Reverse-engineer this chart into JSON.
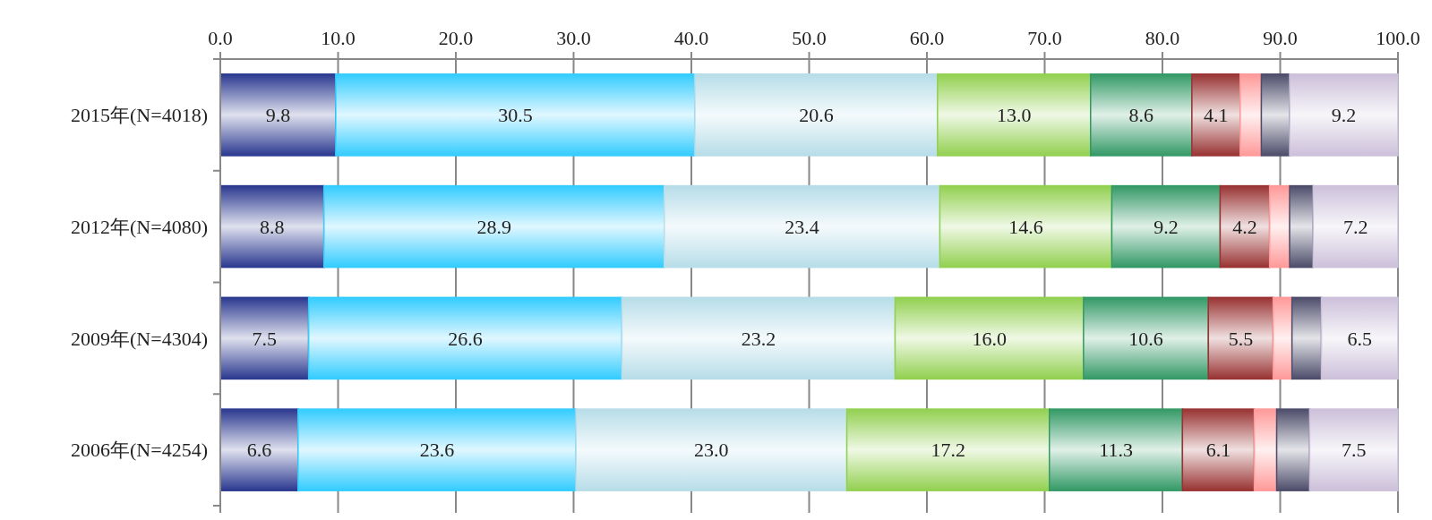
{
  "chart_data": {
    "type": "bar",
    "orientation": "horizontal",
    "stacked": true,
    "grid": "x",
    "categories": [
      "2015年(N=4018)",
      "2012年(N=4080)",
      "2009年(N=4304)",
      "2006年(N=4254)"
    ],
    "xlim": [
      0,
      100
    ],
    "xticks": [
      {
        "value": 0,
        "label": "0.0"
      },
      {
        "value": 10,
        "label": "10.0"
      },
      {
        "value": 20,
        "label": "20.0"
      },
      {
        "value": 30,
        "label": "30.0"
      },
      {
        "value": 40,
        "label": "40.0"
      },
      {
        "value": 50,
        "label": "50.0"
      },
      {
        "value": 60,
        "label": "60.0"
      },
      {
        "value": 70,
        "label": "70.0"
      },
      {
        "value": 80,
        "label": "80.0"
      },
      {
        "value": 90,
        "label": "90.0"
      },
      {
        "value": 100,
        "label": "100.0"
      }
    ],
    "series": [
      {
        "color": "#2b3990",
        "values": [
          9.8,
          8.8,
          7.5,
          6.6
        ],
        "value_labels": [
          "9.8",
          "8.8",
          "7.5",
          "6.6"
        ]
      },
      {
        "color": "#33ccff",
        "values": [
          30.5,
          28.9,
          26.6,
          23.6
        ],
        "value_labels": [
          "30.5",
          "28.9",
          "26.6",
          "23.6"
        ]
      },
      {
        "color": "#b7dde8",
        "values": [
          20.6,
          23.4,
          23.2,
          23.0
        ],
        "value_labels": [
          "20.6",
          "23.4",
          "23.2",
          "23.0"
        ]
      },
      {
        "color": "#92d050",
        "values": [
          13.0,
          14.6,
          16.0,
          17.2
        ],
        "value_labels": [
          "13.0",
          "14.6",
          "16.0",
          "17.2"
        ]
      },
      {
        "color": "#339966",
        "values": [
          8.6,
          9.2,
          10.6,
          11.3
        ],
        "value_labels": [
          "8.6",
          "9.2",
          "10.6",
          "11.3"
        ]
      },
      {
        "color": "#993333",
        "values": [
          4.1,
          4.2,
          5.5,
          6.1
        ],
        "value_labels": [
          "4.1",
          "4.2",
          "5.5",
          "6.1"
        ]
      },
      {
        "color": "#ff9999",
        "values": [
          1.8,
          1.7,
          1.6,
          1.9
        ],
        "value_labels": [
          null,
          null,
          null,
          null
        ]
      },
      {
        "color": "#4d4d6b",
        "values": [
          2.4,
          2.0,
          2.5,
          2.8
        ],
        "value_labels": [
          null,
          null,
          null,
          null
        ]
      },
      {
        "color": "#ccc0da",
        "values": [
          9.2,
          7.2,
          6.5,
          7.5
        ],
        "value_labels": [
          "9.2",
          "7.2",
          "6.5",
          "7.5"
        ]
      }
    ]
  }
}
